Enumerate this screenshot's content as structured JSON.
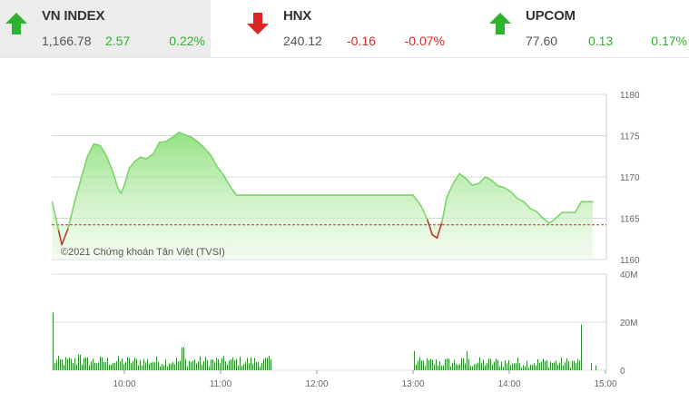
{
  "indices": [
    {
      "name": "VN INDEX",
      "price": "1,166.78",
      "change": "2.57",
      "percent": "0.22%",
      "direction": "up",
      "highlighted": true
    },
    {
      "name": "HNX",
      "price": "240.12",
      "change": "-0.16",
      "percent": "-0.07%",
      "direction": "down",
      "highlighted": false
    },
    {
      "name": "UPCOM",
      "price": "77.60",
      "change": "0.13",
      "percent": "0.17%",
      "direction": "up",
      "highlighted": false
    }
  ],
  "copyright": "©2021 Chứng khoán Tân Việt (TVSI)",
  "colors": {
    "up": "#2db32d",
    "down": "#e02424",
    "area_fill": "#a8e89a",
    "line": "#7bd66a",
    "reference": "#c0392b",
    "volume": "#2e8b2e"
  },
  "chart_data": {
    "type": "area",
    "reference_value": 1164.2,
    "price_axis": {
      "ylim": [
        1160,
        1180
      ],
      "ticks": [
        "1180",
        "1175",
        "1170",
        "1165",
        "1160"
      ]
    },
    "volume_axis": {
      "ylim": [
        0,
        40
      ],
      "unit": "M",
      "ticks": [
        "40M",
        "20M",
        "0"
      ]
    },
    "time_axis": {
      "ticks": [
        "10:00",
        "11:00",
        "12:00",
        "13:00",
        "14:00",
        "15:00"
      ]
    },
    "grid": true,
    "series": [
      {
        "values": [
          [
            "9:15",
            1167.0
          ],
          [
            "9:19",
            1163.5
          ],
          [
            "9:21",
            1161.8
          ],
          [
            "9:25",
            1163.8
          ],
          [
            "9:29",
            1167.0
          ],
          [
            "9:33",
            1169.8
          ],
          [
            "9:37",
            1172.5
          ],
          [
            "9:41",
            1174.0
          ],
          [
            "9:45",
            1173.8
          ],
          [
            "9:49",
            1172.5
          ],
          [
            "9:53",
            1170.5
          ],
          [
            "9:56",
            1168.6
          ],
          [
            "9:58",
            1168.0
          ],
          [
            "10:00",
            1169.0
          ],
          [
            "10:03",
            1171.0
          ],
          [
            "10:06",
            1171.8
          ],
          [
            "10:10",
            1172.4
          ],
          [
            "10:14",
            1172.2
          ],
          [
            "10:18",
            1172.8
          ],
          [
            "10:22",
            1174.2
          ],
          [
            "10:26",
            1174.3
          ],
          [
            "10:30",
            1174.8
          ],
          [
            "10:34",
            1175.4
          ],
          [
            "10:38",
            1175.1
          ],
          [
            "10:42",
            1174.8
          ],
          [
            "10:46",
            1174.2
          ],
          [
            "10:50",
            1173.5
          ],
          [
            "10:54",
            1172.6
          ],
          [
            "10:58",
            1171.2
          ],
          [
            "11:02",
            1170.2
          ],
          [
            "11:06",
            1168.8
          ],
          [
            "11:10",
            1167.8
          ],
          [
            "11:20",
            1167.8
          ],
          [
            "11:30",
            1167.8
          ],
          [
            "13:00",
            1167.8
          ],
          [
            "13:05",
            1166.5
          ],
          [
            "13:09",
            1164.8
          ],
          [
            "13:12",
            1163.0
          ],
          [
            "13:15",
            1162.6
          ],
          [
            "13:18",
            1164.5
          ],
          [
            "13:21",
            1167.5
          ],
          [
            "13:25",
            1169.2
          ],
          [
            "13:29",
            1170.4
          ],
          [
            "13:33",
            1169.8
          ],
          [
            "13:37",
            1169.0
          ],
          [
            "13:41",
            1169.2
          ],
          [
            "13:45",
            1170.0
          ],
          [
            "13:49",
            1169.6
          ],
          [
            "13:53",
            1168.9
          ],
          [
            "13:57",
            1168.7
          ],
          [
            "14:01",
            1168.2
          ],
          [
            "14:05",
            1167.4
          ],
          [
            "14:09",
            1167.0
          ],
          [
            "14:13",
            1166.2
          ],
          [
            "14:17",
            1165.8
          ],
          [
            "14:21",
            1165.0
          ],
          [
            "14:25",
            1164.4
          ],
          [
            "14:29",
            1165.0
          ],
          [
            "14:33",
            1165.7
          ],
          [
            "14:37",
            1165.7
          ],
          [
            "14:41",
            1165.7
          ],
          [
            "14:45",
            1167.0
          ],
          [
            "14:52",
            1167.0
          ]
        ]
      }
    ]
  }
}
